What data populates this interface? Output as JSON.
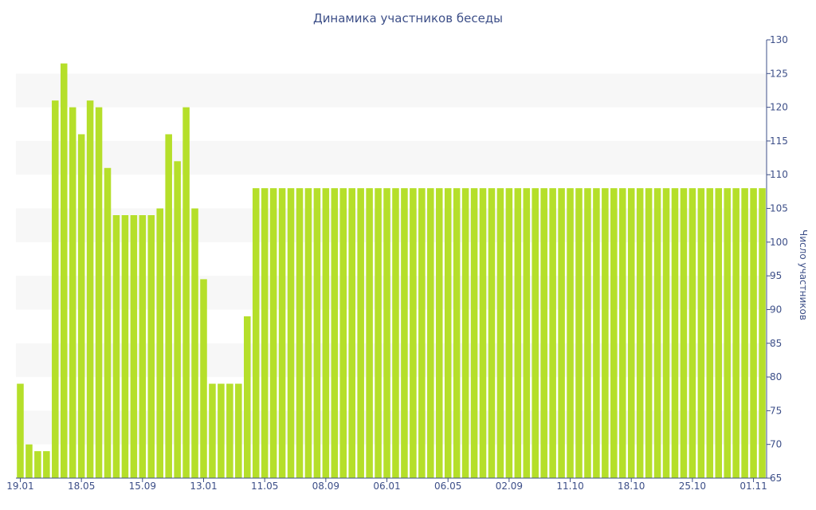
{
  "chart_data": {
    "type": "bar",
    "title": "Динамика участников беседы",
    "ylabel": "Число участников",
    "xlabel": "",
    "ylim": [
      65,
      130
    ],
    "y_ticks": [
      65,
      70,
      75,
      80,
      85,
      90,
      95,
      100,
      105,
      110,
      115,
      120,
      125,
      130
    ],
    "y_axis_side": "right",
    "x_tick_labels": [
      {
        "index": 0,
        "label": "19.01"
      },
      {
        "index": 7,
        "label": "18.05"
      },
      {
        "index": 14,
        "label": "15.09"
      },
      {
        "index": 21,
        "label": "13.01"
      },
      {
        "index": 28,
        "label": "11.05"
      },
      {
        "index": 35,
        "label": "08.09"
      },
      {
        "index": 42,
        "label": "06.01"
      },
      {
        "index": 49,
        "label": "06.05"
      },
      {
        "index": 56,
        "label": "02.09"
      },
      {
        "index": 63,
        "label": "11.10"
      },
      {
        "index": 70,
        "label": "18.10"
      },
      {
        "index": 77,
        "label": "25.10"
      },
      {
        "index": 84,
        "label": "01.11"
      }
    ],
    "bar_color": "#b5df2a",
    "band_color": "#f7f7f7",
    "text_color": "#3d4f88",
    "axis_color": "#3d4f88",
    "grid": false,
    "alternating_bands": true,
    "values": [
      79,
      70,
      69,
      69,
      121,
      126.5,
      120,
      116,
      121,
      120,
      111,
      104,
      104,
      104,
      104,
      104,
      105,
      116,
      112,
      120,
      105,
      94.5,
      79,
      79,
      79,
      79,
      89,
      108,
      108,
      108,
      108,
      108,
      108,
      108,
      108,
      108,
      108,
      108,
      108,
      108,
      108,
      108,
      108,
      108,
      108,
      108,
      108,
      108,
      108,
      108,
      108,
      108,
      108,
      108,
      108,
      108,
      108,
      108,
      108,
      108,
      108,
      108,
      108,
      108,
      108,
      108,
      108,
      108,
      108,
      108,
      108,
      108,
      108,
      108,
      108,
      108,
      108,
      108,
      108,
      108,
      108,
      108,
      108,
      108,
      108,
      108
    ]
  }
}
